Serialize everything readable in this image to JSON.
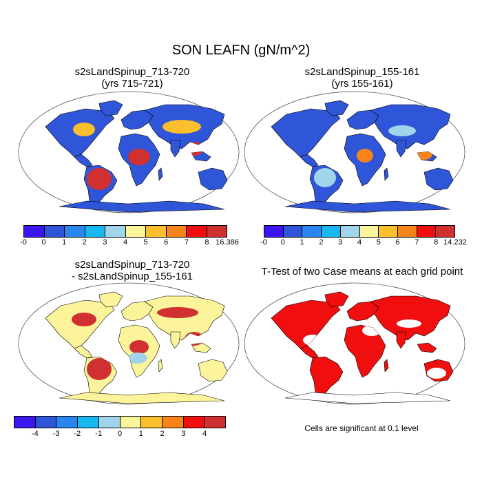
{
  "title": "SON LEAFN (gN/m^2)",
  "panels": [
    {
      "id": "p1",
      "line1": "s2sLandSpinup_713-720",
      "line2": "(yrs 715-721)"
    },
    {
      "id": "p2",
      "line1": "s2sLandSpinup_155-161",
      "line2": "(yrs 155-161)"
    },
    {
      "id": "p3",
      "line1": "s2sLandSpinup_713-720",
      "line2": "- s2sLandSpinup_155-161"
    },
    {
      "id": "p4",
      "line1": "T-Test of two Case means at each grid point",
      "line2": ""
    }
  ],
  "colorbars": [
    {
      "name": "case1-colorbar",
      "colors": [
        "#3b16f2",
        "#2f55d8",
        "#2a86ee",
        "#17b7f0",
        "#9fd4ea",
        "#fcf49a",
        "#f9bf2c",
        "#f6841a",
        "#f00e0e",
        "#d03030"
      ],
      "labels": [
        "-0",
        "0",
        "1",
        "2",
        "3",
        "4",
        "5",
        "6",
        "7",
        "8",
        "16.386"
      ]
    },
    {
      "name": "case2-colorbar",
      "colors": [
        "#3b16f2",
        "#2f55d8",
        "#2a86ee",
        "#17b7f0",
        "#9fd4ea",
        "#fcf49a",
        "#f9bf2c",
        "#f6841a",
        "#f00e0e",
        "#d03030"
      ],
      "labels": [
        "-0",
        "0",
        "1",
        "2",
        "3",
        "4",
        "5",
        "6",
        "7",
        "8",
        "14.232"
      ]
    },
    {
      "name": "difference-colorbar",
      "colors": [
        "#3b16f2",
        "#2f55d8",
        "#2a86ee",
        "#17b7f0",
        "#9fd4ea",
        "#fcf49a",
        "#f9bf2c",
        "#f6841a",
        "#f00e0e",
        "#d03030"
      ],
      "labels": [
        "-4",
        "-3",
        "-2",
        "-1",
        "0",
        "1",
        "2",
        "3",
        "4"
      ]
    }
  ],
  "significance_note": "Cells are significant at 0.1 level",
  "map_fills": {
    "p1": {
      "base": "#2f55d8",
      "hot": "#d03030",
      "warm": "#f9bf2c"
    },
    "p2": {
      "base": "#2f55d8",
      "hot": "#f6841a",
      "warm": "#9fd4ea"
    },
    "p3": {
      "base": "#fcf49a",
      "hot": "#d03030",
      "warm": "#9fd4ea"
    },
    "p4": {
      "base": "#f00e0e",
      "hot": "#f00e0e",
      "warm": "#ffffff"
    }
  }
}
